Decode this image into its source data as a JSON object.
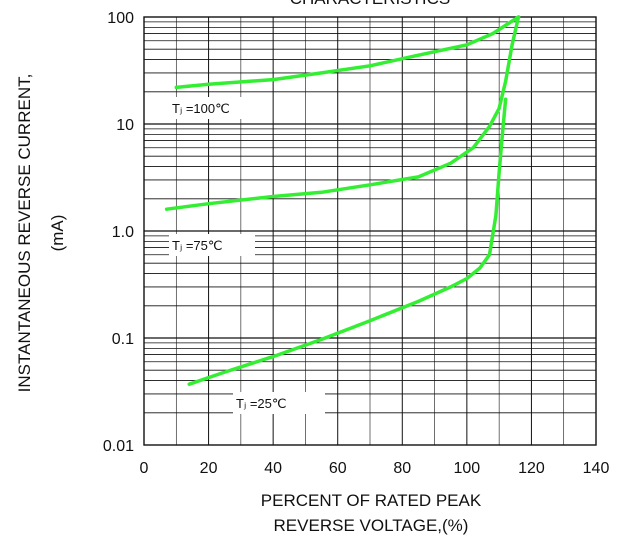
{
  "chart_data": {
    "type": "line",
    "title": "CHARACTERISTICS",
    "xlabel_lines": [
      "PERCENT OF RATED PEAK",
      "REVERSE VOLTAGE,(%)"
    ],
    "ylabel_lines": [
      "INSTANTANEOUS REVERSE CURRENT,",
      "(mA)"
    ],
    "xlim": [
      0,
      140
    ],
    "ylim": [
      0.01,
      100
    ],
    "yscale": "log",
    "grid": true,
    "x_ticks": [
      0,
      20,
      40,
      60,
      80,
      100,
      120,
      140
    ],
    "x_tick_labels": [
      "0",
      "20",
      "40",
      "60",
      "80",
      "100",
      "120",
      "140"
    ],
    "y_ticks": [
      0.01,
      0.1,
      1,
      10,
      100
    ],
    "y_tick_labels": [
      "0.01",
      "0.1",
      "1.0",
      "10",
      "100"
    ],
    "line_color": "#33ee33",
    "series": [
      {
        "name": "Tⱼ =100℃",
        "x": [
          10,
          20,
          40,
          55,
          70,
          85,
          100,
          108,
          116
        ],
        "y": [
          22,
          23.5,
          26,
          30,
          35,
          44,
          55,
          70,
          100
        ]
      },
      {
        "name": "Tⱼ =75℃",
        "x": [
          7,
          20,
          40,
          55,
          70,
          85,
          95,
          102,
          107,
          110,
          112,
          114,
          116
        ],
        "y": [
          1.6,
          1.8,
          2.1,
          2.3,
          2.7,
          3.2,
          4.3,
          6.0,
          9.5,
          14,
          25,
          55,
          100
        ]
      },
      {
        "name": "Tⱼ =25℃",
        "x": [
          14,
          25,
          40,
          55,
          70,
          85,
          95,
          100,
          104,
          107,
          109,
          110,
          111,
          112
        ],
        "y": [
          0.037,
          0.048,
          0.067,
          0.097,
          0.145,
          0.22,
          0.3,
          0.36,
          0.45,
          0.6,
          1.4,
          3.5,
          8.0,
          17
        ]
      }
    ]
  }
}
